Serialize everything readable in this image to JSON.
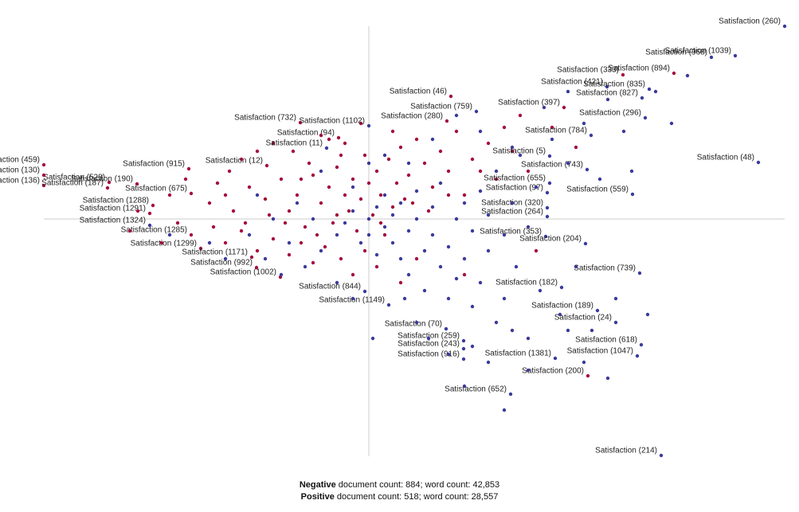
{
  "chart_data": {
    "type": "scatter",
    "xlim": [
      -463,
      527
    ],
    "ylim": [
      -305,
      255
    ],
    "series": [
      {
        "name": "Negative",
        "color": "#a50f3b",
        "stats": "document count: 884; word count: 42,853",
        "x": [
          383,
          319,
          245,
          103,
          98,
          -86,
          -38,
          -226,
          -128,
          -326,
          -291,
          -408,
          -408,
          -408,
          -328,
          -223,
          -271,
          -275,
          -223,
          -211,
          -147,
          -141,
          -111,
          275,
          -150,
          -130,
          -110,
          -100,
          -90,
          -80,
          -70,
          -60,
          -50,
          -45,
          -40,
          -30,
          -25,
          -20,
          -15,
          -10,
          0,
          5,
          10,
          15,
          20,
          25,
          30,
          35,
          40,
          50,
          55,
          60,
          70,
          80,
          90,
          100,
          110,
          120,
          130,
          150,
          160,
          170,
          180,
          200,
          -170,
          -180,
          -160,
          -140,
          -120,
          -100,
          -85,
          -70,
          -55,
          -35,
          -20,
          -5,
          10,
          40,
          60,
          -200,
          -190,
          -175,
          -160,
          -140,
          -120,
          -95,
          -75,
          -50,
          -30,
          -240,
          -250,
          -260,
          -230,
          -195,
          -180,
          -155,
          -125,
          -105,
          -85,
          -65,
          -40,
          -35,
          -5,
          15,
          45,
          75,
          100,
          140,
          190,
          230,
          260,
          210,
          -290,
          -300,
          120,
          30,
          -10,
          -60
        ],
        "y": [
          183,
          181,
          140,
          154,
          123,
          121,
          102,
          63,
          67,
          46,
          44,
          68,
          55,
          42,
          39,
          32,
          17,
          7,
          -20,
          -37,
          -48,
          -61,
          -73,
          -197,
          40,
          25,
          50,
          10,
          30,
          -10,
          55,
          20,
          40,
          -5,
          65,
          30,
          10,
          50,
          -15,
          25,
          45,
          5,
          60,
          30,
          -20,
          75,
          15,
          45,
          90,
          55,
          20,
          100,
          70,
          40,
          85,
          60,
          110,
          30,
          75,
          95,
          50,
          115,
          85,
          60,
          10,
          -30,
          -15,
          -40,
          -25,
          -45,
          -30,
          -55,
          -35,
          -50,
          -70,
          -40,
          -60,
          -80,
          -50,
          20,
          45,
          60,
          75,
          85,
          95,
          85,
          70,
          100,
          95,
          -5,
          30,
          -30,
          50,
          -10,
          30,
          -5,
          5,
          -5,
          50,
          -20,
          5,
          80,
          80,
          -5,
          25,
          10,
          30,
          60,
          130,
          115,
          90,
          -40,
          10,
          -15,
          -70,
          110,
          120,
          105
        ],
        "labels": [
          "Satisfaction (894)",
          "Satisfaction (333)",
          "Satisfaction (397)",
          "Satisfaction (46)",
          "Satisfaction (280)",
          "Satisfaction (732)",
          "Satisfaction (94)",
          "Satisfaction (915)",
          "Satisfaction (12)",
          "Satisfaction (529)",
          "Satisfaction (190)",
          "Satisfaction (459)",
          "Satisfaction (130)",
          "Satisfaction (136)",
          "Satisfaction (187)",
          "Satisfaction (675)",
          "Satisfaction (1288)",
          "Satisfaction (1291)",
          "Satisfaction (1285)",
          "Satisfaction (1299)",
          "Satisfaction (1171)",
          "Satisfaction (992)",
          "Satisfaction (1002)",
          "Satisfaction (200)",
          null,
          null,
          null,
          null,
          null,
          null,
          null,
          null,
          null,
          null,
          null,
          null,
          null,
          null,
          null,
          null,
          null,
          null,
          null,
          null,
          null,
          null,
          null,
          null,
          null,
          null,
          null,
          null,
          null,
          null,
          null,
          null,
          null,
          null,
          null,
          null,
          null,
          null,
          null,
          null,
          null,
          null,
          null,
          null,
          null,
          null,
          null,
          null,
          null,
          null,
          null,
          null,
          null,
          null,
          null,
          null,
          null,
          null,
          null,
          null,
          null,
          null,
          null,
          null,
          null,
          null,
          null,
          null,
          null,
          null,
          null,
          null,
          null,
          null,
          null,
          null,
          null,
          null,
          null,
          null,
          null,
          null,
          null,
          null,
          null,
          null,
          null,
          null,
          null,
          null,
          null,
          null
        ]
      },
      {
        "name": "Positive",
        "color": "#3a3a9e",
        "stats": "document count: 518; word count: 28,557",
        "x": [
          522,
          430,
          460,
          299,
          352,
          343,
          347,
          135,
          0,
          -53,
          279,
          227,
          489,
          274,
          227,
          224,
          331,
          224,
          224,
          -275,
          222,
          272,
          -5,
          25,
          242,
          340,
          287,
          310,
          97,
          119,
          119,
          119,
          342,
          337,
          234,
          178,
          367,
          -40,
          -30,
          -20,
          -10,
          0,
          0,
          10,
          10,
          20,
          20,
          30,
          30,
          40,
          40,
          50,
          50,
          60,
          60,
          70,
          70,
          80,
          80,
          90,
          90,
          100,
          100,
          110,
          110,
          120,
          120,
          130,
          130,
          140,
          140,
          150,
          150,
          160,
          160,
          170,
          170,
          180,
          185,
          190,
          200,
          200,
          210,
          215,
          230,
          240,
          250,
          260,
          270,
          280,
          290,
          300,
          310,
          320,
          330,
          360,
          380,
          400,
          -60,
          -70,
          -80,
          -90,
          -100,
          -110,
          -120,
          -130,
          -140,
          -150,
          -60,
          -20,
          0,
          20,
          50,
          80,
          110,
          140,
          180,
          220,
          250,
          -180,
          -200,
          -250,
          5,
          -20,
          -40,
          60,
          100,
          130,
          150,
          180,
          200,
          250,
          270,
          300,
          350,
          170,
          120,
          45,
          75
        ],
        "y": [
          242,
          203,
          205,
          166,
          163,
          152,
          127,
          135,
          117,
          89,
          105,
          79,
          71,
          62,
          45,
          33,
          31,
          14,
          3,
          -8,
          -22,
          -31,
          -91,
          -108,
          -86,
          -68,
          -115,
          -130,
          -138,
          -153,
          -163,
          -176,
          -158,
          -172,
          -175,
          -220,
          -297,
          -20,
          -5,
          10,
          -30,
          0,
          -20,
          15,
          -45,
          -10,
          30,
          -30,
          5,
          -50,
          20,
          -15,
          -70,
          0,
          35,
          -40,
          -90,
          -20,
          15,
          -60,
          45,
          -35,
          -100,
          0,
          -75,
          20,
          -50,
          -15,
          -110,
          35,
          -80,
          -40,
          5,
          -130,
          60,
          -20,
          -100,
          20,
          -60,
          80,
          -150,
          -10,
          40,
          -90,
          100,
          -120,
          70,
          -60,
          120,
          -140,
          50,
          150,
          -100,
          110,
          60,
          160,
          120,
          180,
          -40,
          0,
          -60,
          20,
          -30,
          -70,
          0,
          -50,
          30,
          -20,
          60,
          40,
          70,
          80,
          70,
          100,
          130,
          110,
          90,
          140,
          160,
          -50,
          -30,
          -20,
          -150,
          -100,
          -80,
          -130,
          -170,
          -160,
          -180,
          -140,
          -190,
          -140,
          -180,
          -200,
          -120,
          -240,
          -210,
          -100,
          -150
        ],
        "labels": [
          "Satisfaction (260)",
          "Satisfaction (968)",
          "Satisfaction (1039)",
          "Satisfaction (421)",
          "Satisfaction (835)",
          "Satisfaction (827)",
          "Satisfaction (296)",
          "Satisfaction (759)",
          "Satisfaction (1102)",
          "Satisfaction (11)",
          "Satisfaction (784)",
          "Satisfaction (5)",
          "Satisfaction (48)",
          "Satisfaction (743)",
          "Satisfaction (655)",
          "Satisfaction (97)",
          "Satisfaction (559)",
          "Satisfaction (320)",
          "Satisfaction (264)",
          "Satisfaction (1324)",
          "Satisfaction (353)",
          "Satisfaction (204)",
          "Satisfaction (844)",
          "Satisfaction (1149)",
          "Satisfaction (182)",
          "Satisfaction (739)",
          "Satisfaction (189)",
          "Satisfaction (24)",
          "Satisfaction (70)",
          "Satisfaction (259)",
          "Satisfaction (243)",
          "Satisfaction (916)",
          "Satisfaction (618)",
          "Satisfaction (1047)",
          "Satisfaction (1381)",
          "Satisfaction (652)",
          "Satisfaction (214)",
          null,
          null,
          null,
          null,
          null,
          null,
          null,
          null,
          null,
          null,
          null,
          null,
          null,
          null,
          null,
          null,
          null,
          null,
          null,
          null,
          null,
          null,
          null,
          null,
          null,
          null,
          null,
          null,
          null,
          null,
          null,
          null,
          null,
          null,
          null,
          null,
          null,
          null,
          null,
          null,
          null,
          null,
          null,
          null,
          null,
          null,
          null,
          null,
          null,
          null,
          null,
          null,
          null,
          null,
          null,
          null,
          null,
          null,
          null,
          null,
          null,
          null,
          null,
          null,
          null,
          null,
          null,
          null,
          null,
          null,
          null,
          null,
          null,
          null,
          null,
          null,
          null,
          null,
          null,
          null,
          null,
          null,
          null,
          null,
          null,
          null,
          null,
          null,
          null,
          null,
          null,
          null,
          null,
          null,
          null
        ]
      }
    ]
  }
}
